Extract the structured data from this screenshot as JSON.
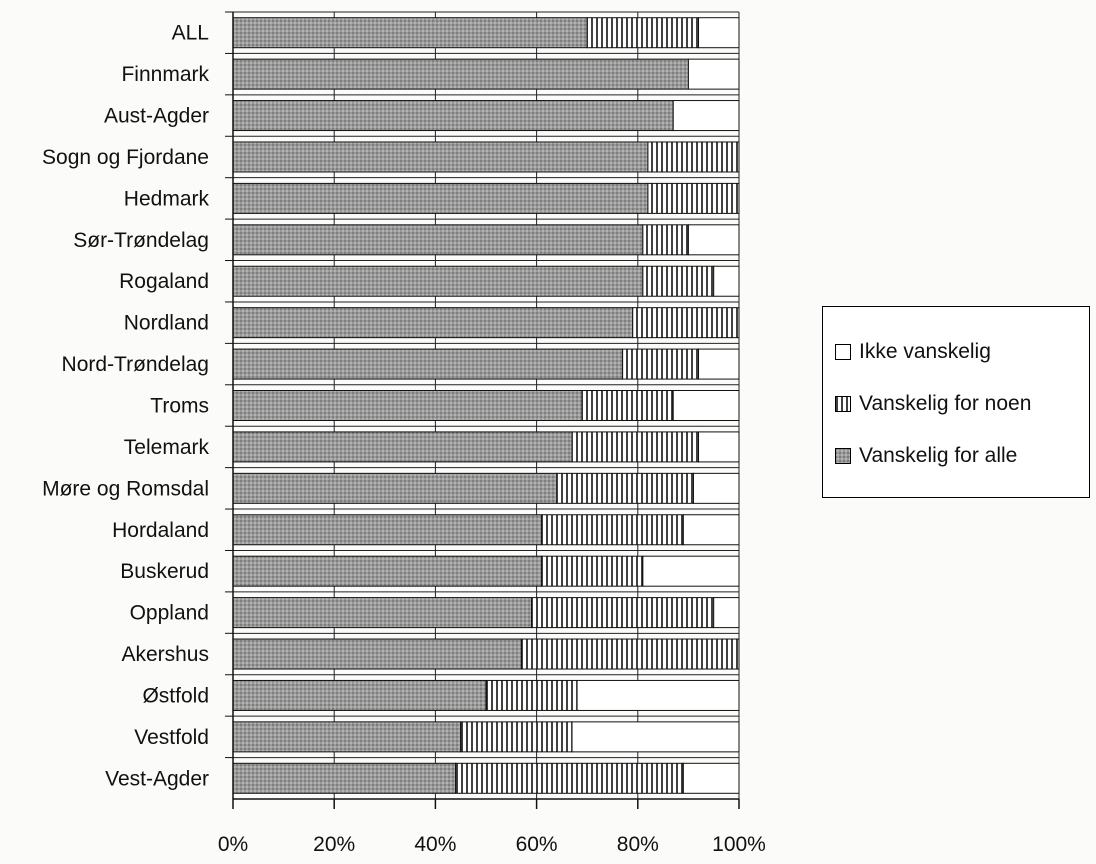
{
  "chart_data": {
    "type": "bar",
    "orientation": "horizontal",
    "stacked": "percent",
    "categories": [
      "ALL",
      "Finnmark",
      "Aust-Agder",
      "Sogn og Fjordane",
      "Hedmark",
      "Sør-Trøndelag",
      "Rogaland",
      "Nordland",
      "Nord-Trøndelag",
      "Troms",
      "Telemark",
      "Møre og Romsdal",
      "Hordaland",
      "Buskerud",
      "Oppland",
      "Akershus",
      "Østfold",
      "Vestfold",
      "Vest-Agder"
    ],
    "series": [
      {
        "name": "Vanskelig for alle",
        "color": "#8c8c8c",
        "pattern": "dots",
        "values": [
          70,
          90,
          87,
          82,
          82,
          81,
          81,
          79,
          77,
          69,
          67,
          64,
          61,
          61,
          59,
          57,
          50,
          45,
          44
        ]
      },
      {
        "name": "Vanskelig for noen",
        "color": "#ffffff",
        "pattern": "vertical-lines",
        "values": [
          22,
          0,
          0,
          18,
          18,
          9,
          14,
          21,
          15,
          18,
          25,
          27,
          28,
          20,
          36,
          43,
          18,
          22,
          45
        ]
      },
      {
        "name": "Ikke vanskelig",
        "color": "#ffffff",
        "pattern": "none",
        "values": [
          8,
          10,
          13,
          0,
          0,
          10,
          5,
          0,
          8,
          13,
          8,
          9,
          11,
          19,
          5,
          0,
          32,
          33,
          11
        ]
      }
    ],
    "x_ticks": [
      "0%",
      "20%",
      "40%",
      "60%",
      "80%",
      "100%"
    ],
    "xlim": [
      0,
      100
    ],
    "grid": "vertical",
    "legend_position": "right",
    "legend_order": [
      "Ikke vanskelig",
      "Vanskelig for noen",
      "Vanskelig for alle"
    ]
  }
}
